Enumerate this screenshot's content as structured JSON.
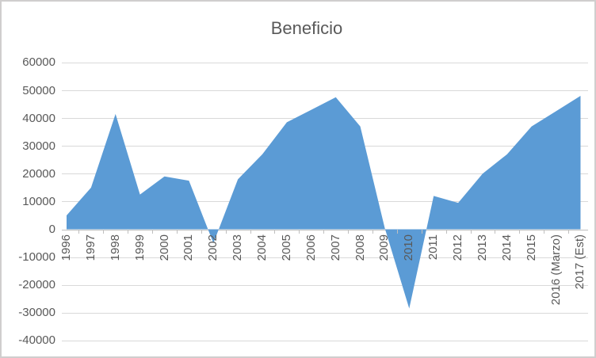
{
  "title": "Beneficio",
  "chart_data": {
    "type": "area",
    "title": "Beneficio",
    "categories": [
      "1996",
      "1997",
      "1998",
      "1999",
      "2000",
      "2001",
      "2002",
      "2003",
      "2004",
      "2005",
      "2006",
      "2007",
      "2008",
      "2009",
      "2010",
      "2011",
      "2012",
      "2013",
      "2014",
      "2015",
      "2016 (Marzo)",
      "2017 (Est)"
    ],
    "values": [
      5000,
      15000,
      41500,
      12500,
      19000,
      17500,
      -5000,
      18000,
      27000,
      38500,
      43000,
      47500,
      37000,
      500,
      -28500,
      12000,
      9500,
      20000,
      27000,
      37000,
      42500,
      48000
    ],
    "ylim": [
      -40000,
      60000
    ],
    "ytick_step": 10000,
    "yticks": [
      60000,
      50000,
      40000,
      30000,
      20000,
      10000,
      0,
      -10000,
      -20000,
      -30000,
      -40000
    ],
    "grid": true,
    "legend": "none",
    "xlabel": "",
    "ylabel": "",
    "colors": {
      "area_fill": "#5b9bd5",
      "text": "#595959",
      "gridline": "#d9d9d9",
      "axis": "#bfbfbf",
      "chart_border": "#d0cece",
      "background": "#ffffff"
    }
  }
}
